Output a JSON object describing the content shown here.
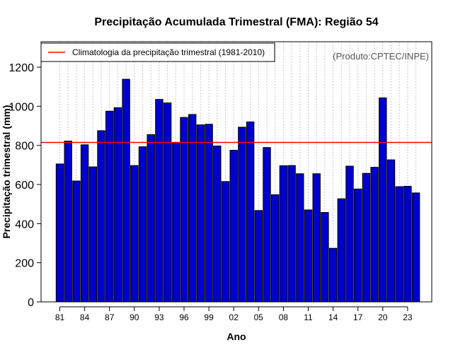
{
  "chart_data": {
    "type": "bar",
    "title": "Precipitação Acumulada Trimestral (FMA): Região 54",
    "xlabel": "Ano",
    "ylabel": "Precipitação trimestral (mm)",
    "source": "(Produto:CPTEC/INPE)",
    "ylim": [
      0,
      1330
    ],
    "yticks": [
      0,
      200,
      400,
      600,
      800,
      1000,
      1200
    ],
    "categories": [
      "1981",
      "1982",
      "1983",
      "1984",
      "1985",
      "1986",
      "1987",
      "1988",
      "1989",
      "1990",
      "1991",
      "1992",
      "1993",
      "1994",
      "1995",
      "1996",
      "1997",
      "1998",
      "1999",
      "2000",
      "2001",
      "2002",
      "2003",
      "2004",
      "2005",
      "2006",
      "2007",
      "2008",
      "2009",
      "2010",
      "2011",
      "2012",
      "2013",
      "2014",
      "2015",
      "2016",
      "2017",
      "2018",
      "2019",
      "2020",
      "2021",
      "2022",
      "2023",
      "2024"
    ],
    "values": [
      705,
      822,
      618,
      803,
      690,
      875,
      975,
      993,
      1138,
      697,
      793,
      855,
      1035,
      1017,
      813,
      943,
      958,
      905,
      908,
      797,
      615,
      775,
      893,
      920,
      467,
      789,
      548,
      696,
      697,
      655,
      470,
      655,
      457,
      274,
      527,
      694,
      577,
      657,
      688,
      1043,
      726,
      589,
      591,
      557
    ],
    "x_tick_labels": [
      "81",
      "84",
      "87",
      "90",
      "93",
      "96",
      "99",
      "02",
      "05",
      "08",
      "11",
      "14",
      "17",
      "20",
      "23"
    ],
    "climatology": {
      "label": "Climatologia da precipitação trimestral (1981-2010)",
      "value": 815,
      "color": "#ff0000"
    },
    "bar_color": "#0000cd",
    "grid": "vertical dotted",
    "legend_position": "top-left"
  }
}
